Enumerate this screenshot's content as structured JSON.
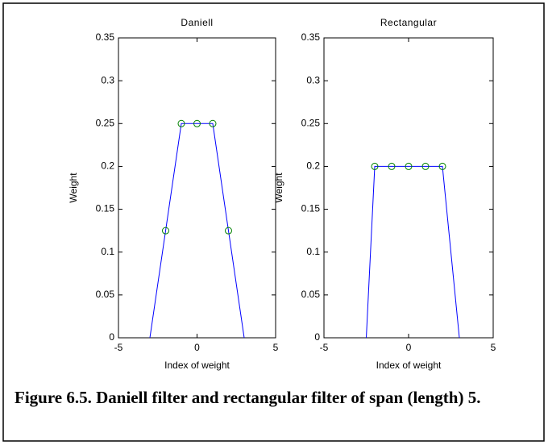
{
  "chart_data": [
    {
      "type": "line",
      "title": "Daniell",
      "xlabel": "Index of weight",
      "ylabel": "Weight",
      "x": [
        -3,
        -2,
        -1,
        0,
        1,
        2,
        3
      ],
      "series": [
        {
          "color": "#0000ff",
          "values": [
            0,
            0.125,
            0.25,
            0.25,
            0.25,
            0.125,
            0
          ]
        },
        {
          "color": "#008000",
          "marker": "o",
          "line": false,
          "values": [
            null,
            0.125,
            0.25,
            0.25,
            0.25,
            0.125,
            null
          ]
        }
      ],
      "xlim": [
        -5,
        5
      ],
      "xticks": [
        -5,
        0,
        5
      ],
      "ylim": [
        0,
        0.35
      ],
      "yticks": [
        0,
        0.05,
        0.1,
        0.15,
        0.2,
        0.25,
        0.3,
        0.35
      ]
    },
    {
      "type": "line",
      "title": "Rectangular",
      "xlabel": "Index of weight",
      "ylabel": "Weight",
      "x": [
        -2.5,
        -2,
        -1,
        0,
        1,
        2,
        3
      ],
      "series": [
        {
          "color": "#0000ff",
          "values": [
            0,
            0.2,
            0.2,
            0.2,
            0.2,
            0.2,
            0
          ]
        },
        {
          "color": "#008000",
          "marker": "o",
          "line": false,
          "values": [
            null,
            0.2,
            0.2,
            0.2,
            0.2,
            0.2,
            null
          ]
        }
      ],
      "xlim": [
        -5,
        5
      ],
      "xticks": [
        -5,
        0,
        5
      ],
      "ylim": [
        0,
        0.35
      ],
      "yticks": [
        0,
        0.05,
        0.1,
        0.15,
        0.2,
        0.25,
        0.3,
        0.35
      ]
    }
  ],
  "caption": "Figure 6.5.  Daniell filter and rectangular filter of span (length)  5."
}
